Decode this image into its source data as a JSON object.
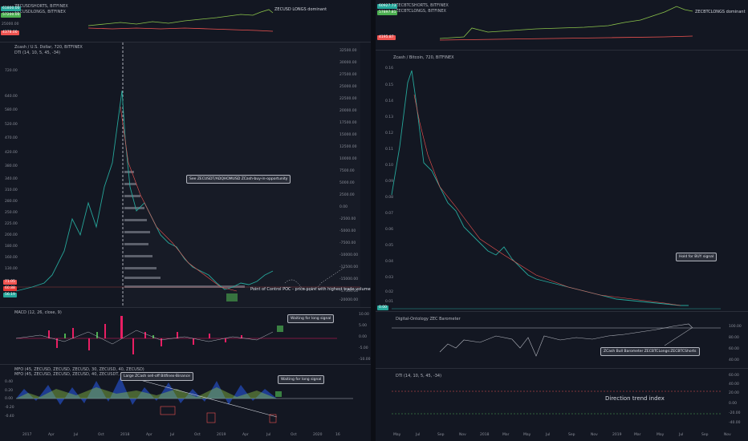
{
  "left": {
    "top_pane": {
      "legend": [
        "ZECUSDSHORTS, BITFINEX",
        "ZECUSDLONGS, BITFINEX"
      ],
      "tags": [
        "61800.00",
        "57200.00",
        "4378.00"
      ],
      "annotation": "ZECUSD LONGS dominant",
      "axis": [
        "25000.00"
      ]
    },
    "main_pane": {
      "legend": [
        "Zcash / U.S. Dollar, 720, BITFINEX",
        "DTI (14, 10, 5, 45, -34)"
      ],
      "left_axis": [
        "720.00",
        "640.00",
        "580.00",
        "520.00",
        "470.00",
        "420.00",
        "380.00",
        "340.00",
        "310.00",
        "280.00",
        "250.00",
        "225.00",
        "200.00",
        "180.00",
        "160.00",
        "145.00",
        "130.00",
        "120.00",
        "110.00",
        "100.00",
        "90.00",
        "80.00",
        "70.00",
        "60.00",
        "55.00",
        "50.00",
        "45.00"
      ],
      "right_axis": [
        "32500.00",
        "30000.00",
        "27500.00",
        "25000.00",
        "22500.00",
        "20000.00",
        "17500.00",
        "15000.00",
        "12500.00",
        "10000.00",
        "7500.00",
        "5000.00",
        "2500.00",
        "0.00",
        "-2500.00",
        "-5000.00",
        "-7500.00",
        "-10000.00",
        "-12500.00",
        "-15000.00",
        "-17500.00",
        "-20000.00"
      ],
      "tags": [
        "71.05",
        "60.88",
        "56.19"
      ],
      "callout": "See ZECUSDT/ADQHOMUSD ZCash-buy-in-opportunity",
      "poc": "Point of Control POC - price point with highest trade volume",
      "buy_tags": [
        "1.5%",
        "1.8%",
        "1.5%",
        "2.8%",
        "1.9%",
        "1.7%",
        "2.4%",
        "1.5%",
        "1.9%"
      ]
    },
    "macd_pane": {
      "legend": "MACD (12, 26, close, 9)",
      "axis": [
        "10.00",
        "5.00",
        "0.00",
        "-5.00",
        "-10.00"
      ],
      "callout": "Waiting for long signal"
    },
    "mfo_pane": {
      "legend": [
        "MFO (45, ZECUSD, ZECUSD, ZECUSD, 30, ZECUSD, 40, ZECUSD)",
        "MFO (45, ZECUSD, ZECUSD, ZECUSD, 40, ZECUSDT, 70, ZECUSD)"
      ],
      "axis": [
        "0.40",
        "0.20",
        "0.00",
        "-0.20",
        "-0.40"
      ],
      "callout_top": "Large ZCash sell-off Bitfinex-Binance",
      "callout_right": "Waiting for long signal"
    },
    "time_axis": [
      "2017",
      "Apr",
      "Jul",
      "Oct",
      "2018",
      "Apr",
      "Jul",
      "Oct",
      "2019",
      "Apr",
      "Jul",
      "Oct",
      "2020",
      "16"
    ]
  },
  "right": {
    "top_pane": {
      "legend": [
        "ZECBTCSHORTS, BITFINEX",
        "ZECBTCLONGS, BITFINEX"
      ],
      "tags": [
        "60927.73",
        "57897.81",
        "4195.87"
      ],
      "annotation": "ZECBTCLONGS dominant"
    },
    "main_pane": {
      "legend": "Zcash / Bitcoin, 720, BITFINEX",
      "axis": [
        "0.16",
        "0.15",
        "0.14",
        "0.13",
        "0.12",
        "0.11",
        "0.10",
        "0.09",
        "0.08",
        "0.07",
        "0.06",
        "0.05",
        "0.04",
        "0.03",
        "0.02",
        "0.01"
      ],
      "callout": "Hold for BUY signal",
      "tag": "0.00"
    },
    "baro_pane": {
      "legend": "Digital-Ontology ZEC Barometer",
      "axis": [
        "100.00",
        "80.00",
        "60.00",
        "40.00"
      ],
      "callout": "ZCash Bull Barometer ZECBTCLongs:ZECBTCShorts"
    },
    "dti_pane": {
      "legend": "DTI (14, 10, 5, 45, -34)",
      "axis": [
        "60.00",
        "40.00",
        "20.00",
        "0.00",
        "-20.00",
        "-40.00"
      ],
      "center": "Direction trend index"
    },
    "time_axis": [
      "May",
      "Jul",
      "Sep",
      "Nov",
      "2018",
      "Mar",
      "May",
      "Jul",
      "Sep",
      "Nov",
      "2019",
      "Mar",
      "May",
      "Jul",
      "Sep",
      "Nov"
    ]
  },
  "colors": {
    "bg": "#131722",
    "green": "#26a69a",
    "lime": "#8bc34a",
    "red": "#ef5350",
    "pink": "#e91e63",
    "grid": "#1e222d"
  }
}
